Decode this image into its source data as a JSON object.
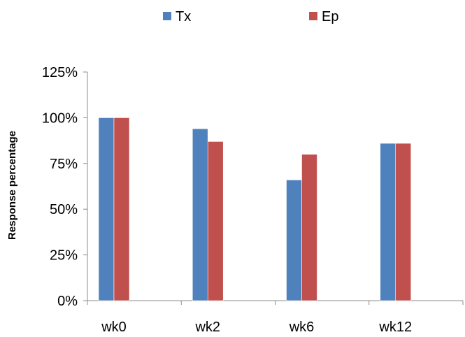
{
  "chart_data": {
    "type": "bar",
    "title": "",
    "xlabel": "",
    "ylabel": "Response percentage",
    "categories": [
      "wk0",
      "wk2",
      "wk6",
      "wk12"
    ],
    "series": [
      {
        "name": "Tx",
        "color": "#4F81BD",
        "values": [
          100,
          94,
          66,
          86
        ]
      },
      {
        "name": "Ep",
        "color": "#C0504D",
        "values": [
          100,
          87,
          80,
          86
        ]
      }
    ],
    "ylim": [
      0,
      125
    ],
    "yticks": [
      0,
      25,
      50,
      75,
      100,
      125
    ],
    "ytick_labels": [
      "0%",
      "25%",
      "50%",
      "75%",
      "100%",
      "125%"
    ],
    "grid": false,
    "legend_position": "top"
  }
}
